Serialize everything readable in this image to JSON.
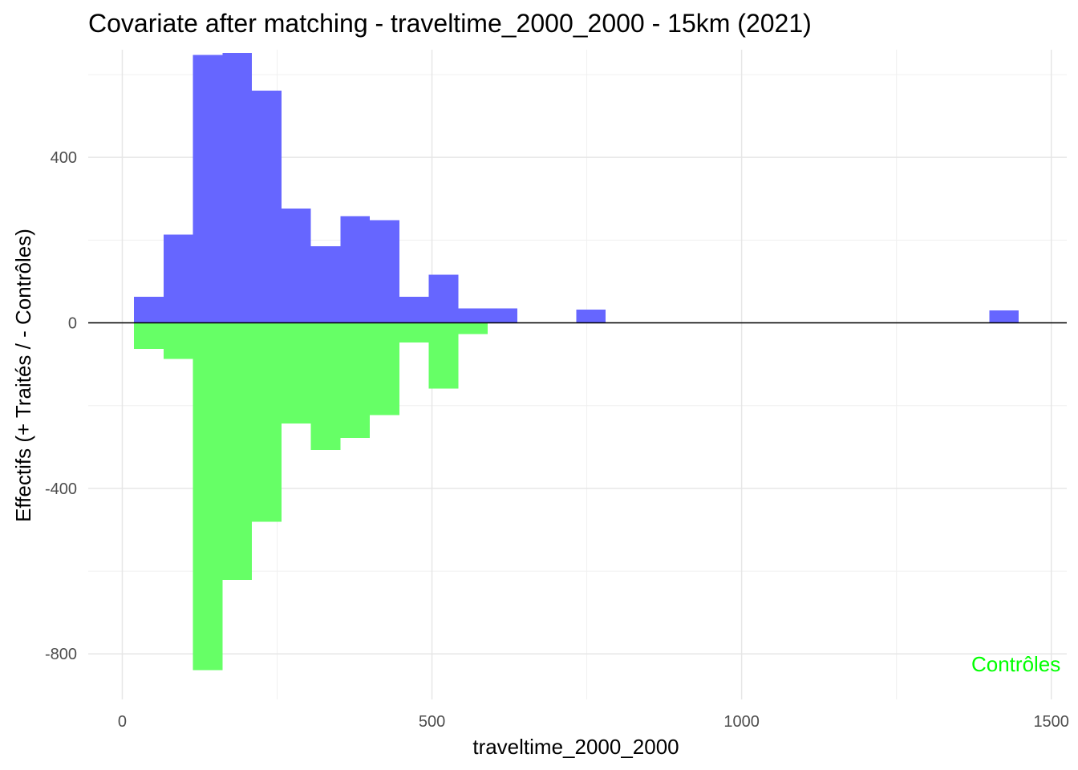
{
  "chart_data": {
    "type": "bar",
    "title": "Covariate after matching - traveltime_2000_2000 - 15km (2021)",
    "xlabel": "traveltime_2000_2000",
    "ylabel": "Effectifs (+ Traités / - Contrôles)",
    "xlim": [
      -55,
      1525
    ],
    "ylim": [
      -910,
      660
    ],
    "x_ticks": [
      0,
      500,
      1000,
      1500
    ],
    "x_tick_labels": [
      "0",
      "500",
      "1000",
      "1500"
    ],
    "y_ticks": [
      -800,
      -400,
      0,
      400
    ],
    "y_tick_labels": [
      "-800",
      "-400",
      "0",
      "400"
    ],
    "grid": true,
    "zero_line": true,
    "bin_width": 47.6,
    "series": [
      {
        "name": "Traités",
        "color": "#6666ff",
        "bins": [
          {
            "x0": 19,
            "x1": 66.6,
            "value": 63
          },
          {
            "x0": 66.6,
            "x1": 114.2,
            "value": 213
          },
          {
            "x0": 114.2,
            "x1": 161.8,
            "value": 647
          },
          {
            "x0": 161.8,
            "x1": 209.4,
            "value": 652
          },
          {
            "x0": 209.4,
            "x1": 257,
            "value": 561
          },
          {
            "x0": 257,
            "x1": 304.6,
            "value": 276
          },
          {
            "x0": 304.6,
            "x1": 352.2,
            "value": 185
          },
          {
            "x0": 352.2,
            "x1": 399.8,
            "value": 258
          },
          {
            "x0": 399.8,
            "x1": 447.4,
            "value": 248
          },
          {
            "x0": 447.4,
            "x1": 495,
            "value": 63
          },
          {
            "x0": 495,
            "x1": 542.6,
            "value": 116
          },
          {
            "x0": 542.6,
            "x1": 590.2,
            "value": 35
          },
          {
            "x0": 590.2,
            "x1": 637.8,
            "value": 35
          },
          {
            "x0": 733,
            "x1": 780.6,
            "value": 32
          },
          {
            "x0": 1400,
            "x1": 1447.6,
            "value": 30
          }
        ]
      },
      {
        "name": "Contrôles",
        "color": "#66ff66",
        "bins": [
          {
            "x0": 19,
            "x1": 66.6,
            "value": -63
          },
          {
            "x0": 66.6,
            "x1": 114.2,
            "value": -87
          },
          {
            "x0": 114.2,
            "x1": 161.8,
            "value": -839
          },
          {
            "x0": 161.8,
            "x1": 209.4,
            "value": -621
          },
          {
            "x0": 209.4,
            "x1": 257,
            "value": -481
          },
          {
            "x0": 257,
            "x1": 304.6,
            "value": -243
          },
          {
            "x0": 304.6,
            "x1": 352.2,
            "value": -307
          },
          {
            "x0": 352.2,
            "x1": 399.8,
            "value": -278
          },
          {
            "x0": 399.8,
            "x1": 447.4,
            "value": -223
          },
          {
            "x0": 447.4,
            "x1": 495,
            "value": -47
          },
          {
            "x0": 495,
            "x1": 542.6,
            "value": -159
          },
          {
            "x0": 542.6,
            "x1": 590.2,
            "value": -27
          }
        ]
      }
    ],
    "annotations": [
      {
        "text": "Contrôles",
        "color": "#00ff00",
        "x": 1515,
        "y": -825
      }
    ]
  }
}
